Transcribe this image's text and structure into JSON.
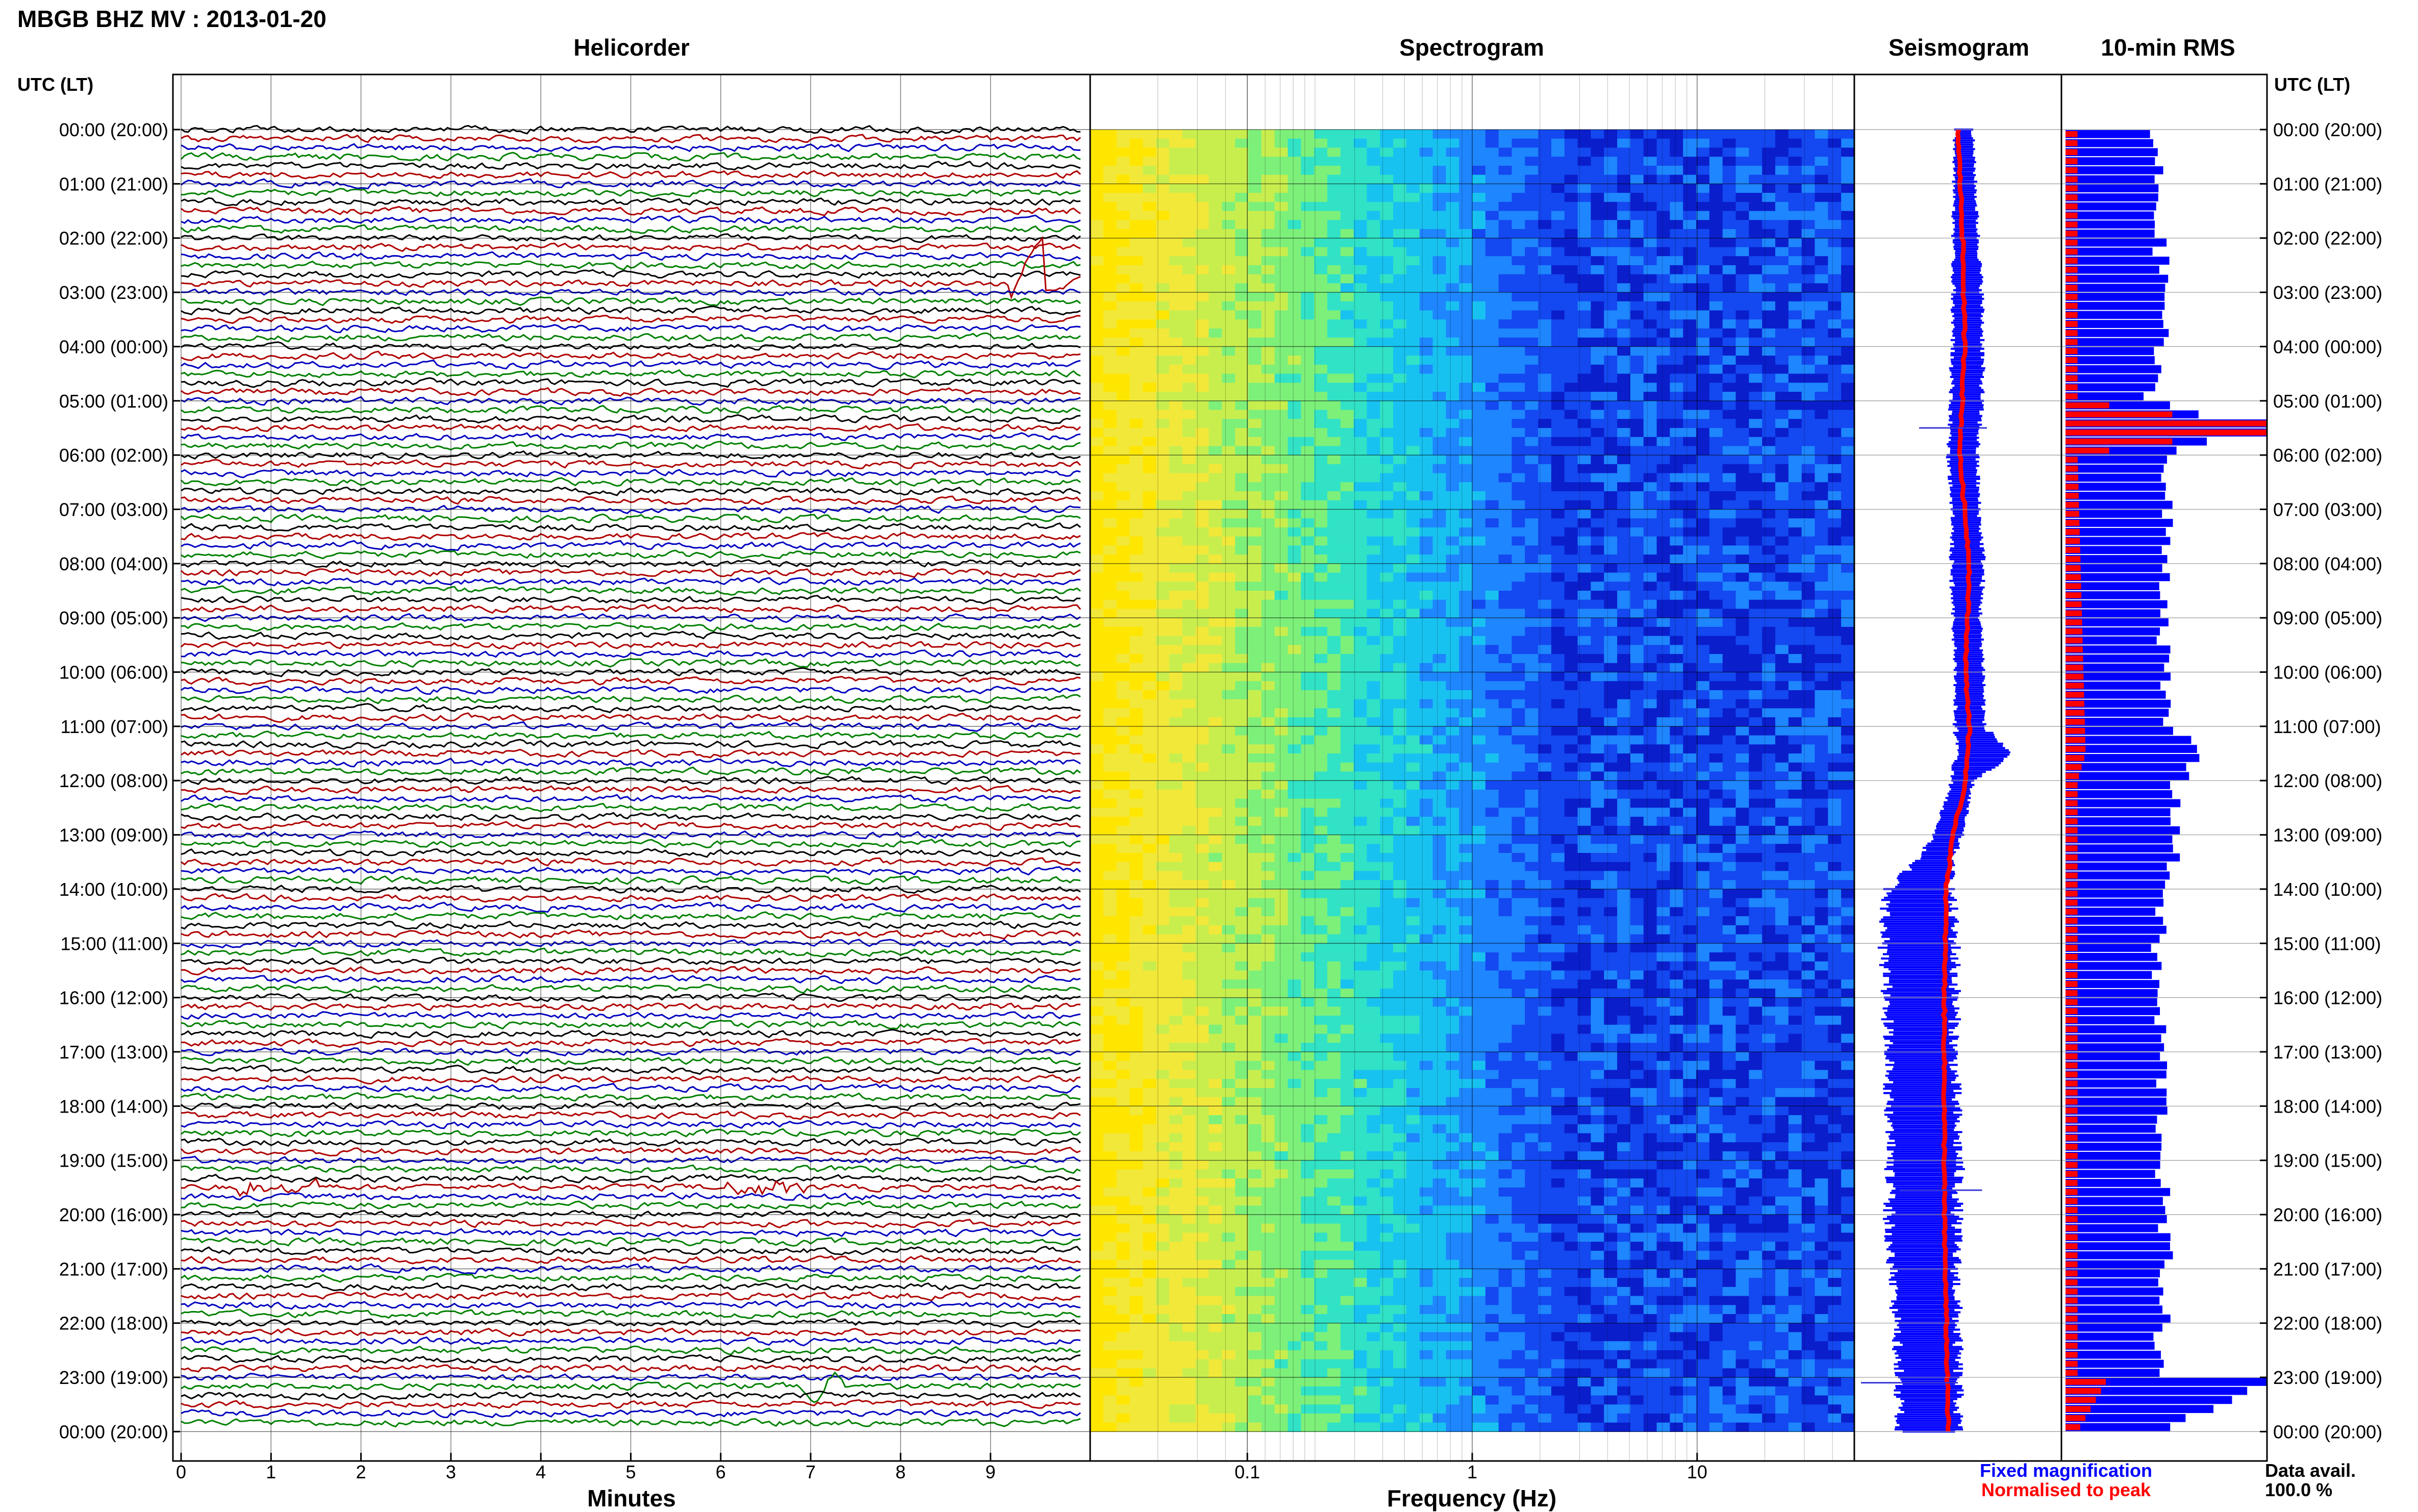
{
  "header": {
    "station_title": "MBGB BHZ MV : 2013-01-20"
  },
  "panels": {
    "helicorder_title": "Helicorder",
    "spectrogram_title": "Spectrogram",
    "seismogram_title": "Seismogram",
    "rms_title": "10-min RMS"
  },
  "axes": {
    "time_axis_title": "UTC (LT)",
    "helicorder_xlabel": "Minutes",
    "spectrogram_xlabel": "Frequency (Hz)"
  },
  "legend": {
    "fixed_label": "Fixed magnification",
    "fixed_color": "#0000ff",
    "normalised_label": "Normalised to peak",
    "normalised_color": "#ff0000"
  },
  "data_availability": {
    "label": "Data avail.",
    "value": "100.0 %"
  },
  "chart_data": [
    {
      "type": "line",
      "panel": "Helicorder",
      "xlabel": "Minutes",
      "x_ticks": [
        "0",
        "1",
        "2",
        "3",
        "4",
        "5",
        "6",
        "7",
        "8",
        "9"
      ],
      "xlim": [
        0,
        10
      ],
      "y_ticks": [
        "00:00 (20:00)",
        "01:00 (21:00)",
        "02:00 (22:00)",
        "03:00 (23:00)",
        "04:00 (00:00)",
        "05:00 (01:00)",
        "06:00 (02:00)",
        "07:00 (03:00)",
        "08:00 (04:00)",
        "09:00 (05:00)",
        "10:00 (06:00)",
        "11:00 (07:00)",
        "12:00 (08:00)",
        "13:00 (09:00)",
        "14:00 (10:00)",
        "15:00 (11:00)",
        "16:00 (12:00)",
        "17:00 (13:00)",
        "18:00 (14:00)",
        "19:00 (15:00)",
        "20:00 (16:00)",
        "21:00 (17:00)",
        "22:00 (18:00)",
        "23:00 (19:00)",
        "00:00 (20:00)"
      ],
      "trace_colors": [
        "#000000",
        "#b00000",
        "#0000c0",
        "#008000"
      ],
      "rows": 144,
      "row_minutes": 10,
      "events": [
        {
          "row": 17,
          "minute": 9.3,
          "kind": "large single-cycle pulse"
        },
        {
          "row": 117,
          "minute": 1.1,
          "kind": "short burst"
        },
        {
          "row": 117,
          "minute": 6.5,
          "kind": "short burst"
        },
        {
          "row": 139,
          "minute": 6.9,
          "kind": "single-cycle pulse"
        }
      ]
    },
    {
      "type": "heatmap",
      "panel": "Spectrogram",
      "xlabel": "Frequency (Hz)",
      "x_scale": "log",
      "xlim": [
        0.02,
        50
      ],
      "x_ticks": [
        "0.1",
        "1",
        "10"
      ],
      "colormap": [
        "#ffe600",
        "#f2e83a",
        "#c8ee4e",
        "#7df07a",
        "#31e2c6",
        "#18c2f0",
        "#1e86ff",
        "#1448f0",
        "#0a1ecc"
      ]
    },
    {
      "type": "line",
      "panel": "Seismogram",
      "series": [
        {
          "name": "Fixed magnification",
          "color": "#0000ff",
          "hours": [
            0,
            1,
            2,
            3,
            4,
            5,
            6,
            7,
            8,
            9,
            10,
            11,
            11.5,
            12,
            13,
            13.5,
            14,
            15,
            16,
            17,
            18,
            19,
            20,
            21,
            22,
            23,
            24
          ],
          "offset": [
            0.06,
            0.07,
            0.08,
            0.1,
            0.1,
            0.09,
            0.05,
            0.08,
            0.1,
            0.09,
            0.12,
            0.12,
            0.28,
            0.05,
            -0.1,
            -0.25,
            -0.4,
            -0.4,
            -0.38,
            -0.38,
            -0.36,
            -0.34,
            -0.36,
            -0.35,
            -0.32,
            -0.3,
            -0.3
          ],
          "half_width": [
            0.1,
            0.12,
            0.14,
            0.16,
            0.17,
            0.17,
            0.16,
            0.15,
            0.18,
            0.15,
            0.16,
            0.16,
            0.3,
            0.12,
            0.15,
            0.2,
            0.35,
            0.4,
            0.38,
            0.37,
            0.37,
            0.38,
            0.38,
            0.36,
            0.34,
            0.33,
            0.33
          ]
        },
        {
          "name": "Normalised to peak",
          "color": "#ff0000",
          "hours": [
            0,
            2,
            4,
            6,
            8,
            10,
            11,
            11.5,
            12,
            13,
            14,
            16,
            18,
            20,
            22,
            24
          ],
          "offset": [
            0.0,
            0.05,
            0.07,
            0.02,
            0.12,
            0.08,
            0.12,
            0.1,
            0.08,
            -0.05,
            -0.12,
            -0.14,
            -0.14,
            -0.14,
            -0.12,
            -0.1
          ]
        }
      ],
      "spikes": [
        {
          "hour": 5.5,
          "extent": [
            -0.4,
            0.3
          ]
        },
        {
          "hour": 19.55,
          "extent": [
            -0.6,
            0.25
          ]
        },
        {
          "hour": 23.1,
          "extent": [
            -1.0,
            0.0
          ]
        }
      ]
    },
    {
      "type": "bar",
      "panel": "10-min RMS",
      "orientation": "horizontal",
      "bins": 144,
      "series": [
        {
          "name": "Fixed magnification",
          "color": "#0000ff",
          "hours": [
            0,
            1,
            2,
            3,
            4,
            5,
            5.5,
            6,
            7,
            8,
            9,
            10,
            11,
            11.5,
            12,
            13,
            14,
            15,
            16,
            17,
            18,
            19,
            20,
            21,
            22,
            23,
            23.1,
            24
          ],
          "values": [
            0.42,
            0.46,
            0.46,
            0.5,
            0.47,
            0.4,
            1.0,
            0.48,
            0.5,
            0.5,
            0.5,
            0.48,
            0.5,
            0.7,
            0.55,
            0.55,
            0.5,
            0.45,
            0.45,
            0.48,
            0.48,
            0.48,
            0.48,
            0.5,
            0.48,
            0.45,
            1.0,
            0.48
          ]
        },
        {
          "name": "Normalised to peak",
          "color": "#ff0000",
          "hours": [
            0,
            5,
            5.5,
            6,
            11.5,
            12,
            23,
            23.1,
            24
          ],
          "values": [
            0.06,
            0.06,
            1.0,
            0.06,
            0.1,
            0.06,
            0.06,
            0.2,
            0.06
          ]
        }
      ]
    }
  ]
}
